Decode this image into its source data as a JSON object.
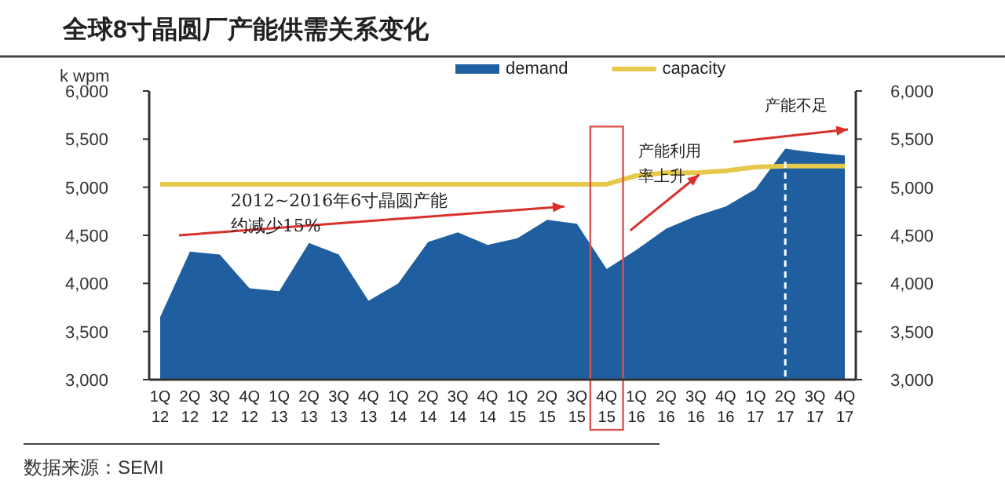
{
  "chart_data": {
    "type": "area",
    "title": "全球8寸晶圆厂产能供需关系变化",
    "ylabel": "k wpm",
    "categories": [
      "1Q\n12",
      "2Q\n12",
      "3Q\n12",
      "4Q\n12",
      "1Q\n13",
      "2Q\n13",
      "3Q\n13",
      "4Q\n13",
      "1Q\n14",
      "2Q\n14",
      "3Q\n14",
      "4Q\n14",
      "1Q\n15",
      "2Q\n15",
      "3Q\n15",
      "4Q\n15",
      "1Q\n16",
      "2Q\n16",
      "3Q\n16",
      "4Q\n16",
      "1Q\n17",
      "2Q\n17",
      "3Q\n17",
      "4Q\n17"
    ],
    "series": [
      {
        "name": "demand",
        "type": "area",
        "color": "#1f5fa0",
        "values": [
          3650,
          4330,
          4300,
          3950,
          3920,
          4420,
          4300,
          3820,
          4000,
          4430,
          4530,
          4400,
          4470,
          4660,
          4620,
          4150,
          4350,
          4570,
          4700,
          4800,
          4980,
          5400,
          5360,
          5330
        ]
      },
      {
        "name": "capacity",
        "type": "line",
        "color": "#e6c84a",
        "values": [
          5030,
          5030,
          5030,
          5030,
          5030,
          5030,
          5030,
          5030,
          5030,
          5030,
          5030,
          5030,
          5030,
          5030,
          5030,
          5030,
          5120,
          5150,
          5150,
          5170,
          5210,
          5220,
          5220,
          5220
        ]
      }
    ],
    "ylim": [
      3000,
      6000
    ],
    "yticks": [
      {
        "value": 3000,
        "label": "3,000"
      },
      {
        "value": 3500,
        "label": "3,500"
      },
      {
        "value": 4000,
        "label": "4,000"
      },
      {
        "value": 4500,
        "label": "4,500"
      },
      {
        "value": 5000,
        "label": "5,000"
      },
      {
        "value": 5500,
        "label": "5,500"
      },
      {
        "value": 6000,
        "label": "6,000"
      }
    ],
    "y2lim": [
      3000,
      6000
    ],
    "y2ticks": [
      {
        "value": 3000,
        "label": "3,000"
      },
      {
        "value": 3500,
        "label": "3,500"
      },
      {
        "value": 4000,
        "label": "4,000"
      },
      {
        "value": 4500,
        "label": "4,500"
      },
      {
        "value": 5000,
        "label": "5,000"
      },
      {
        "value": 5500,
        "label": "5,500"
      },
      {
        "value": 6000,
        "label": "6,000"
      }
    ],
    "ref_lines": [
      {
        "axis": "x",
        "value": "2Q\n17",
        "color": "#ffffff",
        "line_style": "dashed"
      }
    ],
    "annotations": [
      "2012~2016年6寸晶圆产能约减少15%",
      "产能利用率上升",
      "产能不足",
      "数据来源：SEMI"
    ],
    "legend": "top",
    "grid": false
  }
}
